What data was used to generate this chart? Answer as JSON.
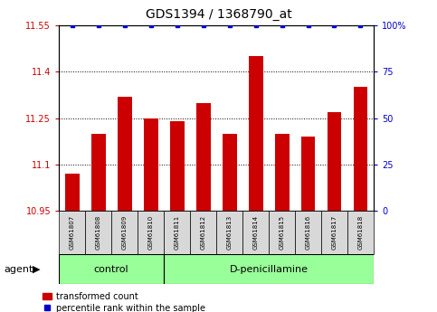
{
  "title": "GDS1394 / 1368790_at",
  "samples": [
    "GSM61807",
    "GSM61808",
    "GSM61809",
    "GSM61810",
    "GSM61811",
    "GSM61812",
    "GSM61813",
    "GSM61814",
    "GSM61815",
    "GSM61816",
    "GSM61817",
    "GSM61818"
  ],
  "bar_values": [
    11.07,
    11.2,
    11.32,
    11.25,
    11.24,
    11.3,
    11.2,
    11.45,
    11.2,
    11.19,
    11.27,
    11.35
  ],
  "percentile_values": [
    100,
    100,
    100,
    100,
    100,
    100,
    100,
    100,
    100,
    100,
    100,
    100
  ],
  "bar_color": "#cc0000",
  "percentile_color": "#0000cc",
  "ylim_left": [
    10.95,
    11.55
  ],
  "ylim_right": [
    0,
    100
  ],
  "yticks_left": [
    10.95,
    11.1,
    11.25,
    11.4,
    11.55
  ],
  "yticks_right": [
    0,
    25,
    50,
    75,
    100
  ],
  "ytick_labels_right": [
    "0",
    "25",
    "50",
    "75",
    "100%"
  ],
  "grid_values": [
    11.1,
    11.25,
    11.4
  ],
  "groups": [
    {
      "label": "control",
      "start": 0,
      "end": 4
    },
    {
      "label": "D-penicillamine",
      "start": 4,
      "end": 12
    }
  ],
  "group_bg_color": "#99ff99",
  "sample_bg_color": "#d8d8d8",
  "agent_label": "agent",
  "legend_bar_label": "transformed count",
  "legend_dot_label": "percentile rank within the sample",
  "bar_width": 0.55,
  "fig_width": 4.83,
  "fig_height": 3.45,
  "fig_dpi": 100
}
